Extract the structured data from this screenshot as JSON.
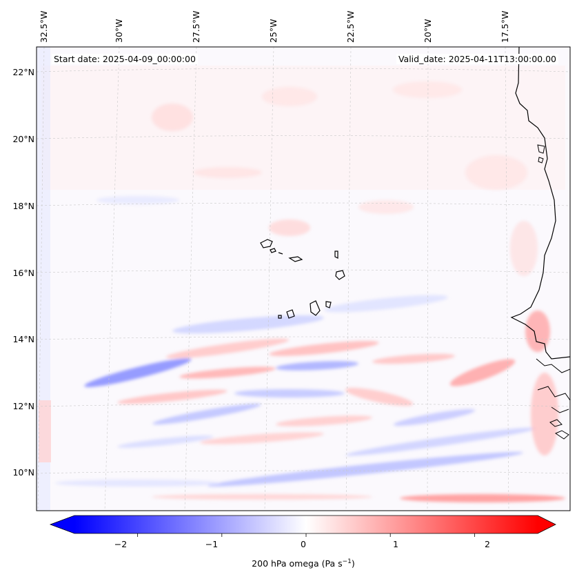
{
  "map": {
    "start_date": "Start date: 2025-04-09_00:00:00",
    "valid_date": "Valid_date: 2025-04-11T13:00:00.00",
    "lon_labels": [
      "32.5°W",
      "30°W",
      "27.5°W",
      "25°W",
      "22.5°W",
      "20°W",
      "17.5°W"
    ],
    "lat_labels": [
      "22°N",
      "20°N",
      "18°N",
      "16°N",
      "14°N",
      "12°N",
      "10°N"
    ],
    "variable": "200 hPa omega",
    "units_base": "(Pa s",
    "units_exp": "−1",
    "units_close": ")"
  },
  "colorbar": {
    "min": -2.75,
    "max": 2.75,
    "ticks": [
      "−2",
      "−1",
      "0",
      "1",
      "2"
    ],
    "tick_values": [
      -2,
      -1,
      0,
      1,
      2
    ],
    "colors": {
      "negative": "#0000ff",
      "zero": "#ffffff",
      "positive": "#ff0000"
    }
  }
}
